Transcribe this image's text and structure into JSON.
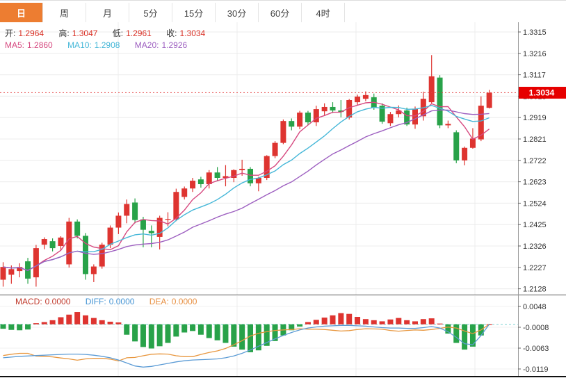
{
  "tabs": {
    "active_index": 0,
    "items": [
      {
        "label": "日"
      },
      {
        "label": "周"
      },
      {
        "label": "月"
      },
      {
        "label": "5分"
      },
      {
        "label": "15分"
      },
      {
        "label": "30分"
      },
      {
        "label": "60分"
      },
      {
        "label": "4时"
      }
    ]
  },
  "ohlc_bar": {
    "open_label": "开:",
    "open": "1.2964",
    "high_label": "高:",
    "high": "1.3047",
    "low_label": "低:",
    "low": "1.2961",
    "close_label": "收:",
    "close": "1.3034"
  },
  "ma_bar": {
    "ma5_label": "MA5:",
    "ma5": "1.2860",
    "ma10_label": "MA10:",
    "ma10": "1.2908",
    "ma20_label": "MA20:",
    "ma20": "1.2926"
  },
  "macd_bar": {
    "macd_label": "MACD:",
    "macd": "0.0000",
    "diff_label": "DIFF:",
    "diff": "0.0000",
    "dea_label": "DEA:",
    "dea": "0.0000"
  },
  "price_tag": {
    "value": "1.3034"
  },
  "colors": {
    "tab_active_bg": "#ED7D31",
    "bull_red": "#DE3430",
    "bear_green": "#28A249",
    "ma5_pink": "#D6487F",
    "ma10_cyan": "#45B7D8",
    "ma20_purple": "#9D5FC0",
    "diff_blue": "#5B9BD5",
    "dea_orange": "#E8973F",
    "price_line_red": "#E64040",
    "price_tag_bg": "#E60000",
    "zero_line_teal": "#7FD4D4",
    "grid": "#ECECEC",
    "axis_text": "#333333"
  },
  "chart_data": {
    "type": "candlestick",
    "title": "",
    "price_panel": {
      "axis_labels": [
        "1.3315",
        "1.3216",
        "1.3117",
        "1.3018",
        "1.2919",
        "1.2821",
        "1.2722",
        "1.2623",
        "1.2524",
        "1.2425",
        "1.2326",
        "1.2227",
        "1.2128"
      ],
      "axis_max": 1.3315,
      "axis_min": 1.2128,
      "axis_step": 0.0099,
      "current_price": 1.3034,
      "ma_periods": [
        5,
        10,
        20
      ],
      "candles": [
        [
          1.2169,
          1.225,
          1.2137,
          1.2228
        ],
        [
          1.2192,
          1.2235,
          1.215,
          1.2218
        ],
        [
          1.2209,
          1.2245,
          1.218,
          1.2228
        ],
        [
          1.2254,
          1.227,
          1.215,
          1.2174
        ],
        [
          1.218,
          1.233,
          1.2137,
          1.2315
        ],
        [
          1.2331,
          1.2365,
          1.231,
          1.2357
        ],
        [
          1.2347,
          1.236,
          1.23,
          1.2315
        ],
        [
          1.2325,
          1.237,
          1.2305,
          1.2364
        ],
        [
          1.224,
          1.2455,
          1.2225,
          1.2438
        ],
        [
          1.2438,
          1.2448,
          1.236,
          1.2372
        ],
        [
          1.2372,
          1.2385,
          1.2169,
          1.2195
        ],
        [
          1.2195,
          1.224,
          1.2158,
          1.223
        ],
        [
          1.223,
          1.234,
          1.222,
          1.2331
        ],
        [
          1.2331,
          1.242,
          1.2315,
          1.241
        ],
        [
          1.241,
          1.248,
          1.238,
          1.2465
        ],
        [
          1.2465,
          1.254,
          1.243,
          1.2519
        ],
        [
          1.2526,
          1.2545,
          1.243,
          1.2445
        ],
        [
          1.2448,
          1.246,
          1.2319,
          1.24
        ],
        [
          1.2395,
          1.242,
          1.2319,
          1.2384
        ],
        [
          1.2367,
          1.2465,
          1.2309,
          1.2455
        ],
        [
          1.2448,
          1.2481,
          1.2416,
          1.245
        ],
        [
          1.2448,
          1.259,
          1.244,
          1.2575
        ],
        [
          1.2552,
          1.26,
          1.254,
          1.2591
        ],
        [
          1.2591,
          1.264,
          1.2575,
          1.2627
        ],
        [
          1.2633,
          1.2645,
          1.2595,
          1.2611
        ],
        [
          1.2611,
          1.2676,
          1.2591,
          1.2665
        ],
        [
          1.2665,
          1.269,
          1.2625,
          1.264
        ],
        [
          1.264,
          1.2699,
          1.2601,
          1.2648
        ],
        [
          1.264,
          1.268,
          1.262,
          1.2676
        ],
        [
          1.2676,
          1.2724,
          1.265,
          1.2682
        ],
        [
          1.2682,
          1.269,
          1.2601,
          1.2615
        ],
        [
          1.2615,
          1.2645,
          1.2578,
          1.264
        ],
        [
          1.264,
          1.2745,
          1.263,
          1.2741
        ],
        [
          1.2741,
          1.281,
          1.2731,
          1.2802
        ],
        [
          1.2802,
          1.291,
          1.2796,
          1.2903
        ],
        [
          1.2903,
          1.2915,
          1.286,
          1.2877
        ],
        [
          1.2877,
          1.295,
          1.2865,
          1.2942
        ],
        [
          1.2942,
          1.295,
          1.2883,
          1.2897
        ],
        [
          1.2897,
          1.2974,
          1.288,
          1.2958
        ],
        [
          1.2948,
          1.2985,
          1.293,
          1.2968
        ],
        [
          1.2968,
          1.299,
          1.294,
          1.2952
        ],
        [
          1.2952,
          1.3,
          1.292,
          1.2945
        ],
        [
          1.2919,
          1.3005,
          1.291,
          1.3
        ],
        [
          1.299,
          1.3025,
          1.2975,
          1.3016
        ],
        [
          1.3006,
          1.304,
          1.2995,
          1.3023
        ],
        [
          1.3013,
          1.303,
          1.2955,
          1.2964
        ],
        [
          1.2974,
          1.2985,
          1.289,
          1.29
        ],
        [
          1.2893,
          1.2945,
          1.288,
          1.2935
        ],
        [
          1.2935,
          1.2975,
          1.292,
          1.2952
        ],
        [
          1.2952,
          1.2965,
          1.288,
          1.2887
        ],
        [
          1.2887,
          1.297,
          1.2867,
          1.296
        ],
        [
          1.2925,
          1.3039,
          1.2905,
          1.3006
        ],
        [
          1.299,
          1.3208,
          1.2985,
          1.311
        ],
        [
          1.3104,
          1.3115,
          1.287,
          1.2883
        ],
        [
          1.2883,
          1.2905,
          1.287,
          1.289
        ],
        [
          1.2851,
          1.286,
          1.2708,
          1.2721
        ],
        [
          1.2721,
          1.2785,
          1.2698,
          1.2779
        ],
        [
          1.2779,
          1.287,
          1.2775,
          1.2822
        ],
        [
          1.2818,
          1.3017,
          1.281,
          1.2974
        ],
        [
          1.2964,
          1.3047,
          1.2961,
          1.3034
        ]
      ]
    },
    "macd_panel": {
      "axis_labels": [
        "0.0048",
        "-0.0008",
        "-0.0063",
        "-0.0119"
      ],
      "axis_max": 0.0048,
      "axis_min": -0.0119,
      "hist": [
        -0.0012,
        -0.0015,
        -0.0016,
        -0.0014,
        0.0003,
        0.0006,
        0.0011,
        0.0019,
        0.0026,
        0.0033,
        0.0024,
        0.0017,
        0.0011,
        0.0007,
        0.0005,
        -0.0028,
        -0.0046,
        -0.0061,
        -0.0065,
        -0.0059,
        -0.005,
        -0.0033,
        -0.0022,
        -0.0018,
        -0.0028,
        -0.0037,
        -0.0043,
        -0.005,
        -0.006,
        -0.0068,
        -0.0075,
        -0.007,
        -0.0058,
        -0.0045,
        -0.003,
        -0.0016,
        -0.0006,
        0.0006,
        0.0012,
        0.0018,
        0.0024,
        0.003,
        0.0028,
        0.002,
        0.0014,
        0.0011,
        0.0008,
        0.0013,
        0.0017,
        0.0011,
        0.0008,
        0.0014,
        0.0016,
        0.0002,
        -0.0025,
        -0.005,
        -0.0068,
        -0.006,
        -0.003,
        0.0
      ],
      "diff": [
        -0.009,
        -0.0088,
        -0.0086,
        -0.0085,
        -0.0084,
        -0.0083,
        -0.0082,
        -0.0081,
        -0.008,
        -0.008,
        -0.0081,
        -0.0083,
        -0.0086,
        -0.009,
        -0.0096,
        -0.0104,
        -0.0112,
        -0.0115,
        -0.0113,
        -0.0109,
        -0.0105,
        -0.0101,
        -0.0098,
        -0.0096,
        -0.0095,
        -0.0094,
        -0.0093,
        -0.009,
        -0.0085,
        -0.0078,
        -0.0069,
        -0.0059,
        -0.0049,
        -0.0039,
        -0.003,
        -0.0022,
        -0.0015,
        -0.001,
        -0.0007,
        -0.0005,
        -0.0004,
        -0.0003,
        -0.0003,
        -0.0004,
        -0.0005,
        -0.0007,
        -0.0009,
        -0.001,
        -0.001,
        -0.0011,
        -0.0011,
        -0.0009,
        -0.0006,
        -0.001,
        -0.002,
        -0.0035,
        -0.0052,
        -0.0055,
        -0.003,
        0.0
      ]
    }
  }
}
